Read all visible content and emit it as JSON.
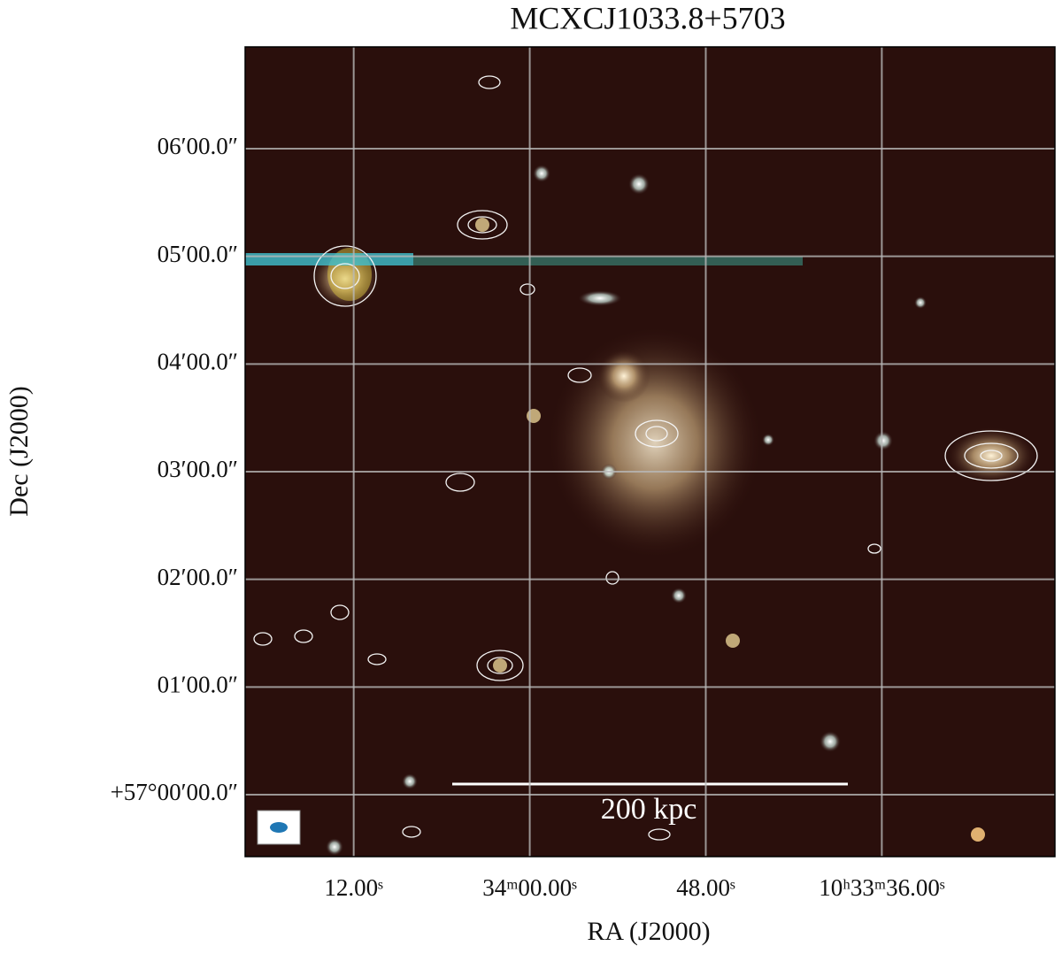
{
  "chart_data": {
    "type": "image",
    "title": "MCXCJ1033.8+5703",
    "x_label": "RA (J2000)",
    "y_label": "Dec (J2000)",
    "xlim": [
      79.4,
      24.2
    ],
    "ylim": [
      -34.5,
      416.7
    ],
    "xticks": [
      {
        "value": 72,
        "label": "12.00ˢ"
      },
      {
        "value": 60,
        "label": "34ᵐ00.00ˢ"
      },
      {
        "value": 48,
        "label": "48.00ˢ"
      },
      {
        "value": 36,
        "label": "10ʰ33ᵐ36.00ˢ"
      }
    ],
    "yticks": [
      {
        "value": 0,
        "label": "+57°00′00.0″"
      },
      {
        "value": 60,
        "label": "01′00.0″"
      },
      {
        "value": 120,
        "label": "02′00.0″"
      },
      {
        "value": 180,
        "label": "03′00.0″"
      },
      {
        "value": 240,
        "label": "04′00.0″"
      },
      {
        "value": 300,
        "label": "05′00.0″"
      },
      {
        "value": 360,
        "label": "06′00.0″"
      }
    ],
    "grid": true,
    "grid_color": "#b8b8b8",
    "annotations": [
      "200 kpc"
    ]
  }
}
